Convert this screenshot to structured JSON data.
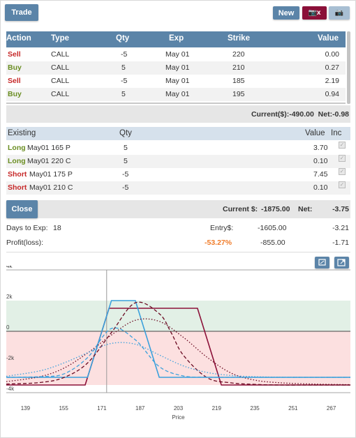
{
  "toolbar": {
    "trade_label": "Trade",
    "new_label": "New",
    "snapshot_delete_label": "📷x",
    "snapshot_label": "📷"
  },
  "trade_table": {
    "headers": [
      "Action",
      "Type",
      "Qty",
      "Exp",
      "Strike",
      "Value"
    ],
    "rows": [
      {
        "action": "Sell",
        "type": "CALL",
        "qty": "-5",
        "exp": "May 01",
        "strike": "220",
        "value": "0.00"
      },
      {
        "action": "Buy",
        "type": "CALL",
        "qty": "5",
        "exp": "May 01",
        "strike": "210",
        "value": "0.27"
      },
      {
        "action": "Sell",
        "type": "CALL",
        "qty": "-5",
        "exp": "May 01",
        "strike": "185",
        "value": "2.19"
      },
      {
        "action": "Buy",
        "type": "CALL",
        "qty": "5",
        "exp": "May 01",
        "strike": "195",
        "value": "0.94"
      }
    ],
    "summary": "Current($):-490.00  Net:-0.98"
  },
  "existing_table": {
    "headers": {
      "existing": "Existing",
      "qty": "Qty",
      "value": "Value",
      "inc": "Inc"
    },
    "rows": [
      {
        "side": "Long",
        "desc": "May01 165 P",
        "qty": "5",
        "value": "3.70"
      },
      {
        "side": "Long",
        "desc": "May01 220 C",
        "qty": "5",
        "value": "0.10"
      },
      {
        "side": "Short",
        "desc": "May01 175 P",
        "qty": "-5",
        "value": "7.45"
      },
      {
        "side": "Short",
        "desc": "May01 210 C",
        "qty": "-5",
        "value": "0.10"
      }
    ]
  },
  "close_bar": {
    "close_label": "Close",
    "current_label": "Current $:",
    "current_value": "-1875.00",
    "net_label": "Net:",
    "net_value": "-3.75"
  },
  "stats": {
    "days_label": "Days to Exp:",
    "days_value": "18",
    "entry_label": "Entry$:",
    "entry_value": "-1605.00",
    "entry_net": "-3.21",
    "pl_label": "Profit(loss):",
    "pl_pct": "-53.27%",
    "pl_value": "-855.00",
    "pl_net": "-1.71"
  },
  "colors": {
    "header_blue": "#5b84a8",
    "sell_red": "#c62828",
    "buy_green": "#6b8e23",
    "pl_orange": "#f07b28",
    "maroon": "#8b1038",
    "cyan_line": "#3aa0dc",
    "profit_zone": "#e2f0e6",
    "loss_zone": "#fce0e0"
  },
  "chart_data": {
    "type": "line",
    "xlabel": "Price",
    "ylabel": "",
    "xlim": [
      131,
      275
    ],
    "ylim": [
      -4000,
      4000
    ],
    "x_ticks": [
      139,
      155,
      171,
      187,
      203,
      219,
      235,
      251,
      267
    ],
    "y_ticks": [
      {
        "value": 4000,
        "label": "4k"
      },
      {
        "value": 2000,
        "label": "2k"
      },
      {
        "value": 0,
        "label": "0"
      },
      {
        "value": -2000,
        "label": "-2k"
      },
      {
        "value": -4000,
        "label": "-4k"
      }
    ],
    "current_price": 173,
    "series": [
      {
        "style": "solid",
        "color": "#8b1038",
        "x": [
          131,
          164,
          174,
          211,
          221,
          275
        ],
        "y": [
          -3500,
          -3500,
          1500,
          1500,
          -3500,
          -3500
        ]
      },
      {
        "style": "solid",
        "color": "#3aa0dc",
        "x": [
          131,
          165,
          175,
          185,
          195,
          275
        ],
        "y": [
          -3000,
          -3000,
          2000,
          2000,
          -3000,
          -3000
        ]
      },
      {
        "style": "dashed",
        "color": "#6a0a22",
        "x": [
          131,
          145,
          155,
          165,
          175,
          185,
          195,
          200,
          205,
          215,
          225,
          235,
          245,
          260,
          275
        ],
        "y": [
          -3440,
          -3340,
          -3020,
          -2070,
          -80,
          1860,
          1150,
          -90,
          -1540,
          -3020,
          -3360,
          -3460,
          -3500,
          -3500,
          -3500
        ]
      },
      {
        "style": "dotted",
        "color": "#6a0a22",
        "x": [
          131,
          145,
          155,
          165,
          175,
          185,
          195,
          205,
          215,
          225,
          235,
          245,
          260,
          275
        ],
        "y": [
          -3280,
          -2960,
          -2410,
          -1420,
          -240,
          720,
          650,
          -380,
          -1690,
          -2720,
          -3180,
          -3350,
          -3440,
          -3480
        ]
      },
      {
        "style": "dashed",
        "color": "#3aa0dc",
        "x": [
          131,
          145,
          155,
          165,
          175,
          185,
          195,
          205,
          215,
          225,
          235,
          275
        ],
        "y": [
          -3000,
          -2960,
          -2780,
          -1720,
          180,
          -560,
          -2300,
          -2910,
          -2990,
          -3000,
          -3000,
          -3000
        ]
      },
      {
        "style": "dotted",
        "color": "#3aa0dc",
        "x": [
          131,
          145,
          155,
          165,
          175,
          185,
          195,
          205,
          215,
          225,
          235,
          245,
          260,
          275
        ],
        "y": [
          -2930,
          -2580,
          -2070,
          -1400,
          -790,
          -840,
          -1540,
          -2250,
          -2680,
          -2880,
          -2960,
          -2990,
          -3000,
          -3000
        ]
      }
    ]
  }
}
